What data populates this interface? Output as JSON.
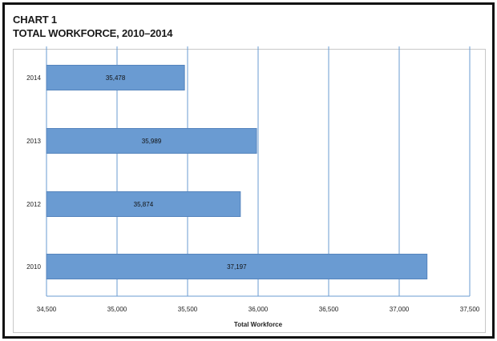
{
  "header": {
    "chart_number": "CHART 1",
    "title": "TOTAL WORKFORCE, 2010–2014"
  },
  "colors": {
    "bar": "#6a9bd2",
    "bar_stroke": "#5584bd",
    "gridline": "#6a9bd2",
    "frame": "#111111"
  },
  "chart_data": {
    "type": "bar",
    "orientation": "horizontal",
    "categories": [
      "2014",
      "2013",
      "2012",
      "2010"
    ],
    "values": [
      35478,
      35989,
      35874,
      37197
    ],
    "data_labels": [
      "35,478",
      "35,989",
      "35,874",
      "37,197"
    ],
    "title": "TOTAL WORKFORCE, 2010–2014",
    "xlabel": "Total Workforce",
    "ylabel": "",
    "xlim": [
      34500,
      37500
    ],
    "xticks": [
      34500,
      35000,
      35500,
      36000,
      36500,
      37000,
      37500
    ],
    "xtick_labels": [
      "34,500",
      "35,000",
      "35,500",
      "36,000",
      "36,500",
      "37,000",
      "37,500"
    ],
    "grid": true,
    "legend": "none"
  }
}
